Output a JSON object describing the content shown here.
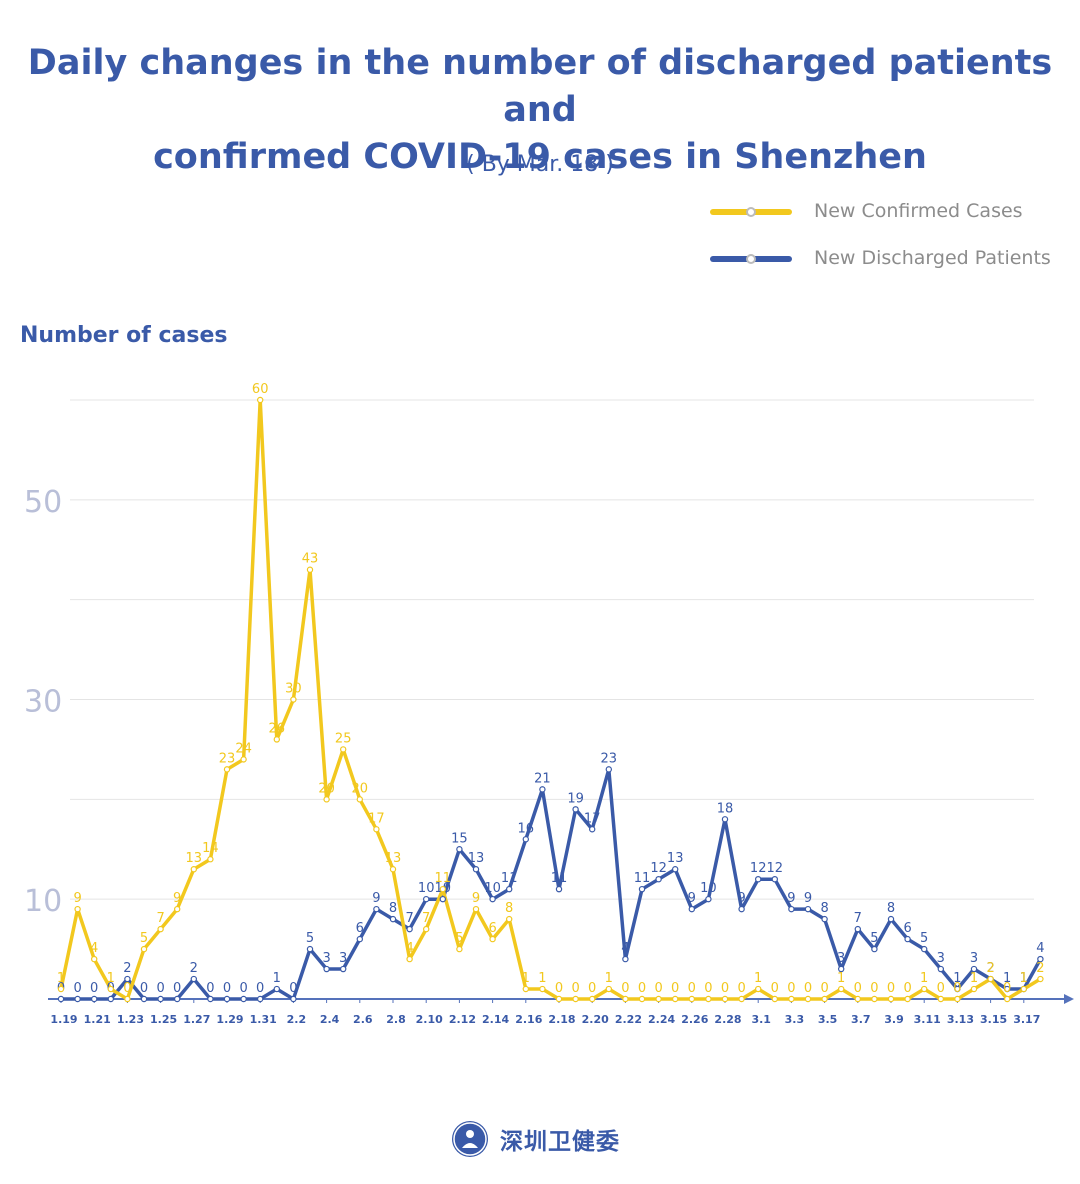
{
  "title_line1": "Daily changes in the number of discharged patients and",
  "title_line2": "confirmed COVID-19 cases in Shenzhen",
  "subtitle": "( By Mar. 18 )",
  "footer_text": "深圳卫健委",
  "colors": {
    "confirmed": "#f2c81e",
    "discharged": "#3a5aa8",
    "axis": "#5572bb",
    "grid": "#e4e4e4"
  },
  "chart_data": {
    "type": "line",
    "ylabel": "Number of cases",
    "yticks": [
      10,
      30,
      50
    ],
    "ylim": [
      0,
      60
    ],
    "grid": true,
    "legend_position": "top-right",
    "x": [
      "1.19",
      "1.20",
      "1.21",
      "1.22",
      "1.23",
      "1.24",
      "1.25",
      "1.26",
      "1.27",
      "1.28",
      "1.29",
      "1.30",
      "1.31",
      "2.1",
      "2.2",
      "2.3",
      "2.4",
      "2.5",
      "2.6",
      "2.7",
      "2.8",
      "2.9",
      "2.10",
      "2.11",
      "2.12",
      "2.13",
      "2.14",
      "2.15",
      "2.16",
      "2.17",
      "2.18",
      "2.19",
      "2.20",
      "2.21",
      "2.22",
      "2.23",
      "2.24",
      "2.25",
      "2.26",
      "2.27",
      "2.28",
      "2.29",
      "3.1",
      "3.2",
      "3.3",
      "3.4",
      "3.5",
      "3.6",
      "3.7",
      "3.8",
      "3.9",
      "3.10",
      "3.11",
      "3.12",
      "3.13",
      "3.14",
      "3.15",
      "3.16",
      "3.17",
      "3.18"
    ],
    "xtick_labels": [
      "1.19",
      "1.21",
      "1.23",
      "1.25",
      "1.27",
      "1.29",
      "1.31",
      "2.2",
      "2.4",
      "2.6",
      "2.8",
      "2.10",
      "2.12",
      "2.14",
      "2.16",
      "2.18",
      "2.20",
      "2.22",
      "2.24",
      "2.26",
      "2.28",
      "3.1",
      "3.3",
      "3.5",
      "3.7",
      "3.9",
      "3.11",
      "3.13",
      "3.15",
      "3.17"
    ],
    "series": [
      {
        "name": "New Confirmed Cases",
        "values": [
          1,
          9,
          4,
          1,
          0,
          5,
          7,
          9,
          13,
          14,
          23,
          24,
          60,
          26,
          30,
          43,
          20,
          25,
          20,
          17,
          13,
          4,
          7,
          11,
          5,
          9,
          6,
          8,
          1,
          1,
          0,
          0,
          0,
          1,
          0,
          0,
          0,
          0,
          0,
          0,
          0,
          0,
          1,
          0,
          0,
          0,
          0,
          1,
          0,
          0,
          0,
          0,
          1,
          0,
          0,
          1,
          2,
          0,
          1,
          2
        ]
      },
      {
        "name": "New Discharged Patients",
        "values": [
          0,
          0,
          0,
          0,
          2,
          0,
          0,
          0,
          2,
          0,
          0,
          0,
          0,
          1,
          0,
          5,
          3,
          3,
          6,
          9,
          8,
          7,
          10,
          10,
          15,
          13,
          10,
          11,
          16,
          21,
          11,
          19,
          17,
          23,
          4,
          11,
          12,
          13,
          9,
          10,
          18,
          9,
          12,
          12,
          9,
          9,
          8,
          3,
          7,
          5,
          8,
          6,
          5,
          3,
          1,
          3,
          2,
          1,
          1,
          4
        ]
      }
    ]
  }
}
